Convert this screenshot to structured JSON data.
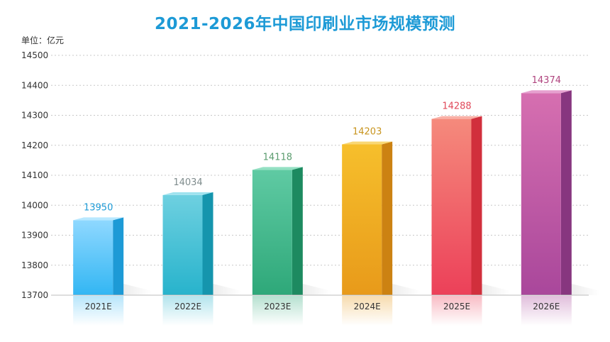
{
  "title": "2021-2026年中国印刷业市场规模预测",
  "unit_label": "单位：亿元",
  "chart_data": {
    "type": "bar",
    "title": "2021-2026年中国印刷业市场规模预测",
    "xlabel": "",
    "ylabel": "单位：亿元",
    "ylim": [
      13700,
      14500
    ],
    "yticks": [
      13700,
      13800,
      13900,
      14000,
      14100,
      14200,
      14300,
      14400,
      14500
    ],
    "grid": true,
    "categories": [
      "2021E",
      "2022E",
      "2023E",
      "2024E",
      "2025E",
      "2026E"
    ],
    "values": [
      13950,
      14034,
      14118,
      14203,
      14288,
      14374
    ],
    "data_labels": [
      "13950",
      "14034",
      "14118",
      "14203",
      "14288",
      "14374"
    ],
    "colors": [
      {
        "front_top": "#8fd8ff",
        "front_bottom": "#32b6f3",
        "side": "#1d9ad6",
        "top": "#b8e8ff",
        "label": "#1d9ad6"
      },
      {
        "front_top": "#6ed0e0",
        "front_bottom": "#27b3cc",
        "side": "#1595ad",
        "top": "#9fe3ef",
        "label": "#7f8c8d"
      },
      {
        "front_top": "#5fcaa3",
        "front_bottom": "#2ea879",
        "side": "#1d8a60",
        "top": "#94e0c3",
        "label": "#5a9c6e"
      },
      {
        "front_top": "#f6bf2c",
        "front_bottom": "#e89a1a",
        "side": "#cc8212",
        "top": "#f9d773",
        "label": "#c8941d"
      },
      {
        "front_top": "#f58a7c",
        "front_bottom": "#ec4059",
        "side": "#d12f3c",
        "top": "#f9b0a6",
        "label": "#e0495a"
      },
      {
        "front_top": "#d66fb0",
        "front_bottom": "#a9479b",
        "side": "#87367f",
        "top": "#e6a0cf",
        "label": "#b0457f"
      }
    ]
  }
}
